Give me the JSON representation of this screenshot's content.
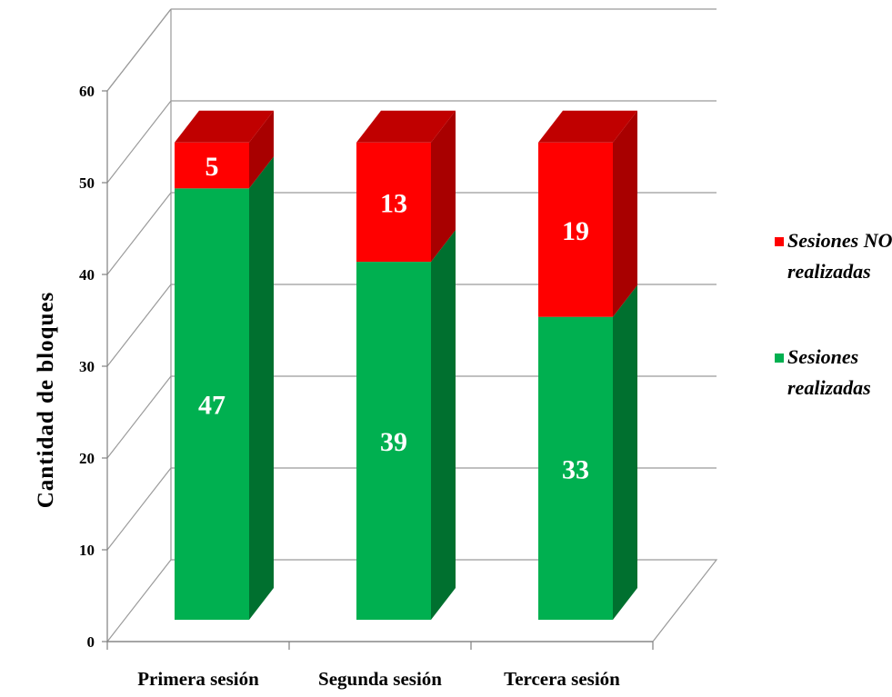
{
  "chart_data": {
    "type": "bar",
    "stacked": true,
    "three_d": true,
    "categories": [
      "Primera sesión",
      "Segunda sesión",
      "Tercera sesión"
    ],
    "series": [
      {
        "name": "Sesiones realizadas",
        "values": [
          47,
          39,
          33
        ],
        "color": "#00b050",
        "side_color": "#00702f",
        "top_color": "#00c858"
      },
      {
        "name": "Sesiones NO realizadas",
        "values": [
          5,
          13,
          19
        ],
        "color": "#ff0000",
        "side_color": "#a80000",
        "top_color": "#c00000"
      }
    ],
    "ylabel": "Cantidad de bloques",
    "xlabel": "",
    "ylim": [
      0,
      60
    ],
    "yticks": [
      0,
      10,
      20,
      30,
      40,
      50,
      60
    ],
    "grid": true,
    "legend_position": "right",
    "legend_entries": [
      {
        "lines": [
          "Sesiones NO",
          "realizadas"
        ],
        "color": "#ff0000"
      },
      {
        "lines": [
          "Sesiones",
          "realizadas"
        ],
        "color": "#00b050"
      }
    ]
  }
}
